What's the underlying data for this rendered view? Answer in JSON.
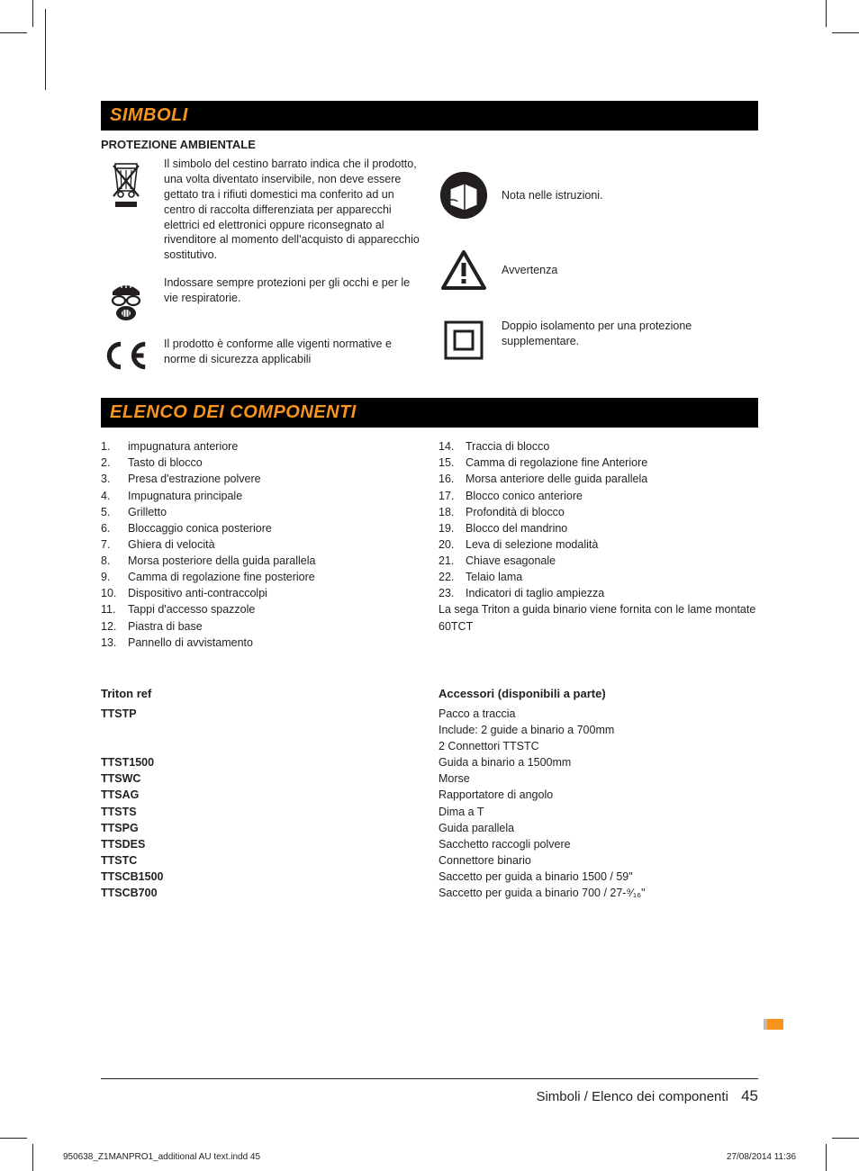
{
  "colors": {
    "accent": "#f7941d",
    "text": "#231f20",
    "bar_bg": "#000000"
  },
  "section1_title": "SIMBOLI",
  "subhead1": "PROTEZIONE AMBIENTALE",
  "sym_weee": "Il simbolo del cestino barrato indica che il prodotto, una volta diventato inservibile, non deve essere gettato tra i rifiuti domestici ma conferito ad un centro di raccolta differenziata per apparecchi elettrici ed elettronici oppure riconsegnato al rivenditore al momento dell'acquisto di apparecchio sostitutivo.",
  "sym_ppe": "Indossare sempre protezioni per gli occhi e per le vie respiratorie.",
  "sym_ce": "Il prodotto è conforme alle vigenti normative e norme di sicurezza applicabili",
  "sym_manual": "Nota nelle istruzioni.",
  "sym_warning": "Avvertenza",
  "sym_doubleins": "Doppio isolamento per una protezione supplementare.",
  "section2_title": "ELENCO DEI COMPONENTI",
  "components_left": [
    {
      "n": "1.",
      "t": "impugnatura anteriore"
    },
    {
      "n": "2.",
      "t": "Tasto di blocco"
    },
    {
      "n": "3.",
      "t": "Presa d'estrazione polvere"
    },
    {
      "n": "4.",
      "t": "Impugnatura principale"
    },
    {
      "n": "5.",
      "t": "Grilletto"
    },
    {
      "n": "6.",
      "t": "Bloccaggio conica posteriore"
    },
    {
      "n": "7.",
      "t": "Ghiera di velocità"
    },
    {
      "n": "8.",
      "t": "Morsa posteriore della guida parallela"
    },
    {
      "n": "9.",
      "t": "Camma di regolazione fine posteriore"
    },
    {
      "n": "10.",
      "t": "Dispositivo anti-contraccolpi"
    },
    {
      "n": "11.",
      "t": "Tappi d'accesso spazzole"
    },
    {
      "n": "12.",
      "t": "Piastra di base"
    },
    {
      "n": "13.",
      "t": "Pannello di avvistamento"
    }
  ],
  "components_right": [
    {
      "n": "14.",
      "t": "Traccia di blocco"
    },
    {
      "n": "15.",
      "t": "Camma di regolazione fine Anteriore"
    },
    {
      "n": "16.",
      "t": "Morsa anteriore delle guida parallela"
    },
    {
      "n": "17.",
      "t": "Blocco conico anteriore"
    },
    {
      "n": "18.",
      "t": "Profondità di blocco"
    },
    {
      "n": "19.",
      "t": "Blocco del mandrino"
    },
    {
      "n": "20.",
      "t": "Leva di selezione modalità"
    },
    {
      "n": "21.",
      "t": "Chiave esagonale"
    },
    {
      "n": "22.",
      "t": "Telaio lama"
    },
    {
      "n": "23.",
      "t": "Indicatori di taglio ampiezza"
    }
  ],
  "components_note": "La sega Triton a guida binario  viene fornita con le lame montate 60TCT",
  "acc_head_left": "Triton ref",
  "acc_head_right": "Accessori (disponibili a parte)",
  "acc_rows": [
    {
      "ref": "TTSTP",
      "desc": "Pacco a traccia"
    },
    {
      "ref": "",
      "desc": "Include:  2 guide a binario a 700mm"
    },
    {
      "ref": "",
      "desc": "2 Connettori TTSTC"
    },
    {
      "ref": "TTST1500",
      "desc": "Guida a binario a 1500mm"
    },
    {
      "ref": "TTSWC",
      "desc": "Morse"
    },
    {
      "ref": "TTSAG",
      "desc": "Rapportatore di angolo"
    },
    {
      "ref": "TTSTS",
      "desc": "Dima a T"
    },
    {
      "ref": "TTSPG",
      "desc": "Guida parallela"
    },
    {
      "ref": "TTSDES",
      "desc": "Sacchetto raccogli polvere"
    },
    {
      "ref": "TTSTC",
      "desc": "Connettore binario"
    },
    {
      "ref": "TTSCB1500",
      "desc": "Saccetto per guida a binario 1500 / 59\""
    },
    {
      "ref": "TTSCB700",
      "desc": "Saccetto per guida a binario  700 / 27-⁹⁄₁₆\""
    }
  ],
  "footer_title": "Simboli / Elenco dei componenti",
  "footer_page": "45",
  "slug_left": "950638_Z1MANPRO1_additional AU text.indd   45",
  "slug_right": "27/08/2014   11:36"
}
